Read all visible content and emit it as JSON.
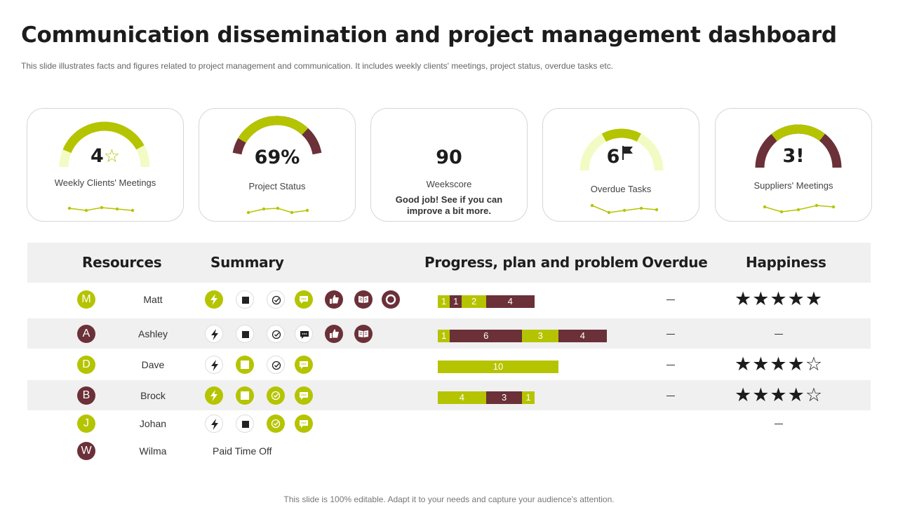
{
  "title": "Communication dissemination and project management dashboard",
  "subtitle": "This slide illustrates facts and figures related to project management and communication. It includes weekly clients' meetings, project status, overdue tasks etc.",
  "footer": "This slide is 100% editable. Adapt it to your needs and capture your audience's attention.",
  "colors": {
    "lime": "#b5c400",
    "pale_lime": "#f2fbc3",
    "maroon": "#6b3038",
    "band": "#f0f0f0"
  },
  "kpis": {
    "meetings": {
      "value": "4",
      "icon": "star-outline-icon",
      "icon_glyph": "☆",
      "label": "Weekly Clients' Meetings"
    },
    "status": {
      "value": "69%",
      "label": "Project Status"
    },
    "weekscore": {
      "value": "90",
      "label": "Weekscore",
      "note_line1": "Good job!  See if you can",
      "note_line2": "improve a bit more."
    },
    "overdue": {
      "value": "6",
      "icon": "flag-icon",
      "label": "Overdue  Tasks"
    },
    "suppliers": {
      "value": "3!",
      "label": "Suppliers' Meetings"
    }
  },
  "table": {
    "headers": {
      "resources": "Resources",
      "summary": "Summary",
      "progress": "Progress, plan and problem",
      "overdue": "Overdue",
      "happiness": "Happiness"
    },
    "dash": "–",
    "rows": [
      {
        "name": "Matt",
        "initial": "M",
        "avatar_color": "lime",
        "summary_icons": [
          "bolt-icon",
          "stop-square-icon",
          "check-circle-icon",
          "chat-icon",
          "thumbs-up-icon",
          "book-icon",
          "ring-icon"
        ],
        "progress": [
          {
            "value": "1",
            "color": "lime"
          },
          {
            "value": "1",
            "color": "maroon"
          },
          {
            "value": "2",
            "color": "lime"
          },
          {
            "value": "4",
            "color": "maroon"
          }
        ],
        "overdue": "–",
        "happiness": "★★★★★"
      },
      {
        "name": "Ashley",
        "initial": "A",
        "avatar_color": "maroon",
        "summary_icons": [
          "bolt-icon",
          "stop-square-icon",
          "check-circle-icon",
          "chat-icon",
          "thumbs-up-icon",
          "book-icon"
        ],
        "progress": [
          {
            "value": "1",
            "color": "lime"
          },
          {
            "value": "6",
            "color": "maroon"
          },
          {
            "value": "3",
            "color": "lime"
          },
          {
            "value": "4",
            "color": "maroon"
          }
        ],
        "overdue": "–",
        "happiness": "–"
      },
      {
        "name": "Dave",
        "initial": "D",
        "avatar_color": "lime",
        "summary_icons": [
          "bolt-icon",
          "stop-square-icon",
          "check-circle-icon",
          "chat-icon"
        ],
        "progress": [
          {
            "value": "10",
            "color": "lime"
          }
        ],
        "overdue": "–",
        "happiness": "★★★★☆"
      },
      {
        "name": "Brock",
        "initial": "B",
        "avatar_color": "maroon",
        "summary_icons": [
          "bolt-icon",
          "stop-square-icon",
          "check-circle-icon",
          "chat-icon"
        ],
        "progress": [
          {
            "value": "4",
            "color": "lime"
          },
          {
            "value": "3",
            "color": "maroon"
          },
          {
            "value": "1",
            "color": "lime"
          }
        ],
        "overdue": "–",
        "happiness": "★★★★☆"
      },
      {
        "name": "Johan",
        "initial": "J",
        "avatar_color": "lime",
        "summary_icons": [
          "bolt-icon",
          "stop-square-icon",
          "check-circle-icon",
          "chat-icon"
        ],
        "progress": [],
        "overdue": "",
        "happiness": "–"
      },
      {
        "name": "Wilma",
        "initial": "W",
        "avatar_color": "maroon",
        "summary_text": "Paid Time Off",
        "progress": [],
        "overdue": "",
        "happiness": ""
      }
    ]
  }
}
